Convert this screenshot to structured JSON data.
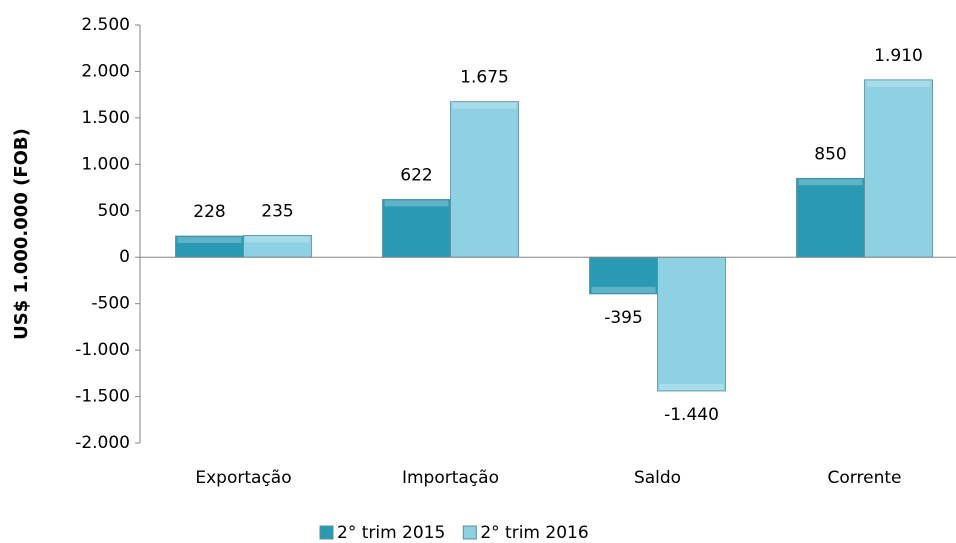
{
  "chart_data": {
    "type": "bar",
    "y_label": "US$ 1.000.000 (FOB)",
    "categories": [
      "Exportação",
      "Importação",
      "Saldo",
      "Corrente"
    ],
    "series": [
      {
        "name": "2° trim 2015",
        "color": "#2a9ab3",
        "values": [
          228,
          622,
          -395,
          850
        ],
        "value_labels": [
          "228",
          "622",
          "-395",
          "850"
        ]
      },
      {
        "name": "2° trim 2016",
        "color": "#8dd1e3",
        "values": [
          235,
          1675,
          -1440,
          1910
        ],
        "value_labels": [
          "235",
          "1.675",
          "-1.440",
          "1.910"
        ]
      }
    ],
    "ylim": [
      -2000,
      2500
    ],
    "yticks": [
      {
        "value": -2000,
        "label": "-2.000"
      },
      {
        "value": -1500,
        "label": "-1.500"
      },
      {
        "value": -1000,
        "label": "-1.000"
      },
      -500,
      0,
      500,
      {
        "value": 1000,
        "label": "1.000"
      },
      {
        "value": 1500,
        "label": "1.500"
      },
      {
        "value": 2000,
        "label": "2.000"
      },
      {
        "value": 2500,
        "label": "2.500"
      }
    ],
    "legend": "bottom"
  }
}
